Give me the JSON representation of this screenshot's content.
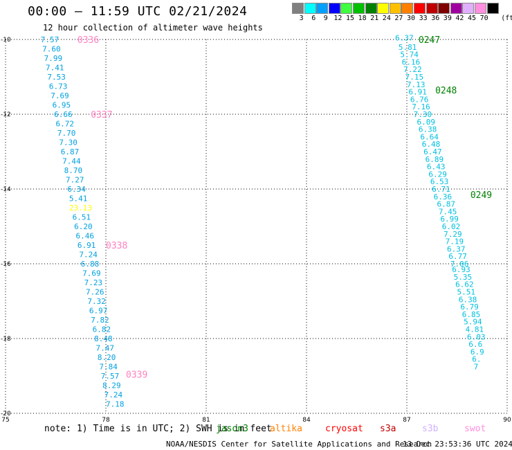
{
  "header": {
    "title": "00:00 – 11:59 UTC 02/21/2024",
    "subtitle": "12 hour collection of altimeter wave heights"
  },
  "legend": {
    "unit_label": "(ft)",
    "bins": [
      {
        "label": "3",
        "color": "#808080"
      },
      {
        "label": "6",
        "color": "#00ffff"
      },
      {
        "label": "9",
        "color": "#00a0ff"
      },
      {
        "label": "12",
        "color": "#0000ff"
      },
      {
        "label": "15",
        "color": "#40ff40"
      },
      {
        "label": "18",
        "color": "#00c000"
      },
      {
        "label": "21",
        "color": "#008000"
      },
      {
        "label": "24",
        "color": "#ffff00"
      },
      {
        "label": "27",
        "color": "#ffc000"
      },
      {
        "label": "30",
        "color": "#ff8000"
      },
      {
        "label": "33",
        "color": "#ff0000"
      },
      {
        "label": "36",
        "color": "#c00000"
      },
      {
        "label": "39",
        "color": "#800000"
      },
      {
        "label": "42",
        "color": "#a000a0"
      },
      {
        "label": "45",
        "color": "#e0b0ff"
      },
      {
        "label": "70",
        "color": "#ff90e0"
      },
      {
        "label": "",
        "color": "#000000"
      }
    ]
  },
  "map": {
    "lat_ticks": [
      "-10",
      "-12",
      "-14",
      "-16",
      "-18",
      "-20"
    ],
    "lon_ticks": [
      "75",
      "78",
      "81",
      "84",
      "87",
      "90"
    ]
  },
  "tracks": [
    {
      "name": "west",
      "times": [
        {
          "label": "0336",
          "color": "#ff80c0",
          "lat": -10.0,
          "lon": 77.15
        },
        {
          "label": "0337",
          "color": "#ff80c0",
          "lat": -12.0,
          "lon": 77.55
        },
        {
          "label": "0338",
          "color": "#ff80c0",
          "lat": -15.5,
          "lon": 78.0
        },
        {
          "label": "0339",
          "color": "#ff80c0",
          "lat": -18.95,
          "lon": 78.6
        }
      ],
      "points": [
        {
          "v": "7.57",
          "lat": -10.0,
          "lon": 76.05,
          "color": "#00a0e0"
        },
        {
          "v": "7.60",
          "lat": -10.25,
          "lon": 76.1,
          "color": "#00a0e0"
        },
        {
          "v": "7.99",
          "lat": -10.5,
          "lon": 76.15,
          "color": "#00a0e0"
        },
        {
          "v": "7.41",
          "lat": -10.75,
          "lon": 76.2,
          "color": "#00a0e0"
        },
        {
          "v": "7.53",
          "lat": -11.0,
          "lon": 76.25,
          "color": "#00a0e0"
        },
        {
          "v": "6.73",
          "lat": -11.25,
          "lon": 76.3,
          "color": "#00a0e0"
        },
        {
          "v": "7.69",
          "lat": -11.5,
          "lon": 76.35,
          "color": "#00a0e0"
        },
        {
          "v": "6.95",
          "lat": -11.75,
          "lon": 76.4,
          "color": "#00a0e0"
        },
        {
          "v": "6.66",
          "lat": -12.0,
          "lon": 76.45,
          "color": "#00a0e0"
        },
        {
          "v": "6.72",
          "lat": -12.25,
          "lon": 76.5,
          "color": "#00a0e0"
        },
        {
          "v": "7.70",
          "lat": -12.5,
          "lon": 76.55,
          "color": "#00a0e0"
        },
        {
          "v": "7.30",
          "lat": -12.75,
          "lon": 76.6,
          "color": "#00a0e0"
        },
        {
          "v": "6.87",
          "lat": -13.0,
          "lon": 76.65,
          "color": "#00a0e0"
        },
        {
          "v": "7.44",
          "lat": -13.25,
          "lon": 76.7,
          "color": "#00a0e0"
        },
        {
          "v": "8.70",
          "lat": -13.5,
          "lon": 76.75,
          "color": "#00a0e0"
        },
        {
          "v": "7.27",
          "lat": -13.75,
          "lon": 76.8,
          "color": "#00a0e0"
        },
        {
          "v": "6.34",
          "lat": -14.0,
          "lon": 76.85,
          "color": "#00a0e0"
        },
        {
          "v": "5.41",
          "lat": -14.25,
          "lon": 76.9,
          "color": "#00a0e0"
        },
        {
          "v": "23.13",
          "lat": -14.5,
          "lon": 76.9,
          "color": "#ffff00"
        },
        {
          "v": "6.51",
          "lat": -14.75,
          "lon": 77.0,
          "color": "#00a0e0"
        },
        {
          "v": "6.20",
          "lat": -15.0,
          "lon": 77.05,
          "color": "#00a0e0"
        },
        {
          "v": "6.46",
          "lat": -15.25,
          "lon": 77.1,
          "color": "#00a0e0"
        },
        {
          "v": "6.91",
          "lat": -15.5,
          "lon": 77.15,
          "color": "#00a0e0"
        },
        {
          "v": "7.24",
          "lat": -15.75,
          "lon": 77.2,
          "color": "#00a0e0"
        },
        {
          "v": "6.88",
          "lat": -16.0,
          "lon": 77.25,
          "color": "#00a0e0"
        },
        {
          "v": "7.69",
          "lat": -16.25,
          "lon": 77.3,
          "color": "#00a0e0"
        },
        {
          "v": "7.23",
          "lat": -16.5,
          "lon": 77.35,
          "color": "#00a0e0"
        },
        {
          "v": "7.26",
          "lat": -16.75,
          "lon": 77.4,
          "color": "#00a0e0"
        },
        {
          "v": "7.32",
          "lat": -17.0,
          "lon": 77.45,
          "color": "#00a0e0"
        },
        {
          "v": "6.97",
          "lat": -17.25,
          "lon": 77.5,
          "color": "#00a0e0"
        },
        {
          "v": "7.82",
          "lat": -17.5,
          "lon": 77.55,
          "color": "#00a0e0"
        },
        {
          "v": "6.82",
          "lat": -17.75,
          "lon": 77.6,
          "color": "#00a0e0"
        },
        {
          "v": "8.48",
          "lat": -18.0,
          "lon": 77.65,
          "color": "#00a0e0"
        },
        {
          "v": "7.47",
          "lat": -18.25,
          "lon": 77.7,
          "color": "#00a0e0"
        },
        {
          "v": "8.20",
          "lat": -18.5,
          "lon": 77.75,
          "color": "#00a0e0"
        },
        {
          "v": "7.84",
          "lat": -18.75,
          "lon": 77.8,
          "color": "#00a0e0"
        },
        {
          "v": "7.57",
          "lat": -19.0,
          "lon": 77.85,
          "color": "#00a0e0"
        },
        {
          "v": "8.29",
          "lat": -19.25,
          "lon": 77.9,
          "color": "#00a0e0"
        },
        {
          "v": "7.24",
          "lat": -19.5,
          "lon": 77.95,
          "color": "#00a0e0"
        },
        {
          "v": "7.18",
          "lat": -19.75,
          "lon": 78.0,
          "color": "#00a0e0"
        }
      ]
    },
    {
      "name": "east",
      "times": [
        {
          "label": "0247",
          "color": "#008000",
          "lat": -10.0,
          "lon": 87.35
        },
        {
          "label": "0248",
          "color": "#008000",
          "lat": -11.35,
          "lon": 87.85
        },
        {
          "label": "0249",
          "color": "#008000",
          "lat": -14.15,
          "lon": 88.9
        }
      ],
      "points": [
        {
          "v": "6.37",
          "lat": -9.95,
          "lon": 86.65,
          "color": "#00c0e0"
        },
        {
          "v": "5.81",
          "lat": -10.2,
          "lon": 86.75,
          "color": "#00c0e0"
        },
        {
          "v": "5.74",
          "lat": -10.4,
          "lon": 86.8,
          "color": "#00c0e0"
        },
        {
          "v": "6.16",
          "lat": -10.6,
          "lon": 86.85,
          "color": "#00c0e0"
        },
        {
          "v": "7.22",
          "lat": -10.8,
          "lon": 86.9,
          "color": "#00c0e0"
        },
        {
          "v": "7.15",
          "lat": -11.0,
          "lon": 86.95,
          "color": "#00c0e0"
        },
        {
          "v": "7.13",
          "lat": -11.2,
          "lon": 87.0,
          "color": "#00c0e0"
        },
        {
          "v": "6.91",
          "lat": -11.4,
          "lon": 87.05,
          "color": "#00c0e0"
        },
        {
          "v": "6.76",
          "lat": -11.6,
          "lon": 87.1,
          "color": "#00c0e0"
        },
        {
          "v": "7.16",
          "lat": -11.8,
          "lon": 87.15,
          "color": "#00c0e0"
        },
        {
          "v": "7.30",
          "lat": -12.0,
          "lon": 87.2,
          "color": "#00c0e0"
        },
        {
          "v": "6.09",
          "lat": -12.2,
          "lon": 87.3,
          "color": "#00c0e0"
        },
        {
          "v": "6.38",
          "lat": -12.4,
          "lon": 87.35,
          "color": "#00c0e0"
        },
        {
          "v": "6.64",
          "lat": -12.6,
          "lon": 87.4,
          "color": "#00c0e0"
        },
        {
          "v": "6.48",
          "lat": -12.8,
          "lon": 87.45,
          "color": "#00c0e0"
        },
        {
          "v": "6.47",
          "lat": -13.0,
          "lon": 87.5,
          "color": "#00c0e0"
        },
        {
          "v": "6.89",
          "lat": -13.2,
          "lon": 87.55,
          "color": "#00c0e0"
        },
        {
          "v": "6.43",
          "lat": -13.4,
          "lon": 87.6,
          "color": "#00c0e0"
        },
        {
          "v": "6.29",
          "lat": -13.6,
          "lon": 87.65,
          "color": "#00c0e0"
        },
        {
          "v": "6.53",
          "lat": -13.8,
          "lon": 87.7,
          "color": "#00c0e0"
        },
        {
          "v": "6.71",
          "lat": -14.0,
          "lon": 87.75,
          "color": "#00c0e0"
        },
        {
          "v": "6.36",
          "lat": -14.2,
          "lon": 87.8,
          "color": "#00c0e0"
        },
        {
          "v": "6.87",
          "lat": -14.4,
          "lon": 87.9,
          "color": "#00c0e0"
        },
        {
          "v": "7.45",
          "lat": -14.6,
          "lon": 87.95,
          "color": "#00c0e0"
        },
        {
          "v": "6.99",
          "lat": -14.8,
          "lon": 88.0,
          "color": "#00c0e0"
        },
        {
          "v": "6.02",
          "lat": -15.0,
          "lon": 88.05,
          "color": "#00c0e0"
        },
        {
          "v": "7.29",
          "lat": -15.2,
          "lon": 88.1,
          "color": "#00c0e0"
        },
        {
          "v": "7.19",
          "lat": -15.4,
          "lon": 88.15,
          "color": "#00c0e0"
        },
        {
          "v": "6.37",
          "lat": -15.6,
          "lon": 88.2,
          "color": "#00c0e0"
        },
        {
          "v": "6.77",
          "lat": -15.8,
          "lon": 88.25,
          "color": "#00c0e0"
        },
        {
          "v": "7.06",
          "lat": -16.0,
          "lon": 88.3,
          "color": "#00c0e0"
        },
        {
          "v": "6.93",
          "lat": -16.15,
          "lon": 88.35,
          "color": "#00c0e0"
        },
        {
          "v": "5.35",
          "lat": -16.35,
          "lon": 88.4,
          "color": "#00c0e0"
        },
        {
          "v": "6.62",
          "lat": -16.55,
          "lon": 88.45,
          "color": "#00c0e0"
        },
        {
          "v": "5.51",
          "lat": -16.75,
          "lon": 88.5,
          "color": "#00c0e0"
        },
        {
          "v": "6.38",
          "lat": -16.95,
          "lon": 88.55,
          "color": "#00c0e0"
        },
        {
          "v": "6.79",
          "lat": -17.15,
          "lon": 88.6,
          "color": "#00c0e0"
        },
        {
          "v": "6.85",
          "lat": -17.35,
          "lon": 88.65,
          "color": "#00c0e0"
        },
        {
          "v": "5.94",
          "lat": -17.55,
          "lon": 88.7,
          "color": "#00c0e0"
        },
        {
          "v": "4.81",
          "lat": -17.75,
          "lon": 88.75,
          "color": "#00c0e0"
        },
        {
          "v": "6.03",
          "lat": -17.95,
          "lon": 88.8,
          "color": "#00c0e0"
        },
        {
          "v": "6.6",
          "lat": -18.15,
          "lon": 88.85,
          "color": "#00c0e0"
        },
        {
          "v": "6.9",
          "lat": -18.35,
          "lon": 88.9,
          "color": "#00c0e0"
        },
        {
          "v": "6.",
          "lat": -18.55,
          "lon": 88.95,
          "color": "#00c0e0"
        },
        {
          "v": "7",
          "lat": -18.75,
          "lon": 89.0,
          "color": "#00c0e0"
        }
      ]
    }
  ],
  "footer": {
    "note": "note: 1) Time is in UTC; 2) SWH is in feet",
    "satellites": [
      {
        "name": "jason3",
        "color": "#008000"
      },
      {
        "name": "altika",
        "color": "#ff8000"
      },
      {
        "name": "cryosat",
        "color": "#ff0000"
      },
      {
        "name": "s3a",
        "color": "#c00000"
      },
      {
        "name": "s3b",
        "color": "#d0b0ff"
      },
      {
        "name": "swot",
        "color": "#ff90e0"
      }
    ],
    "credit": "NOAA/NESDIS Center for Satellite Applications and Research",
    "generated": "13 Dec 23:53:36 UTC 2024"
  }
}
